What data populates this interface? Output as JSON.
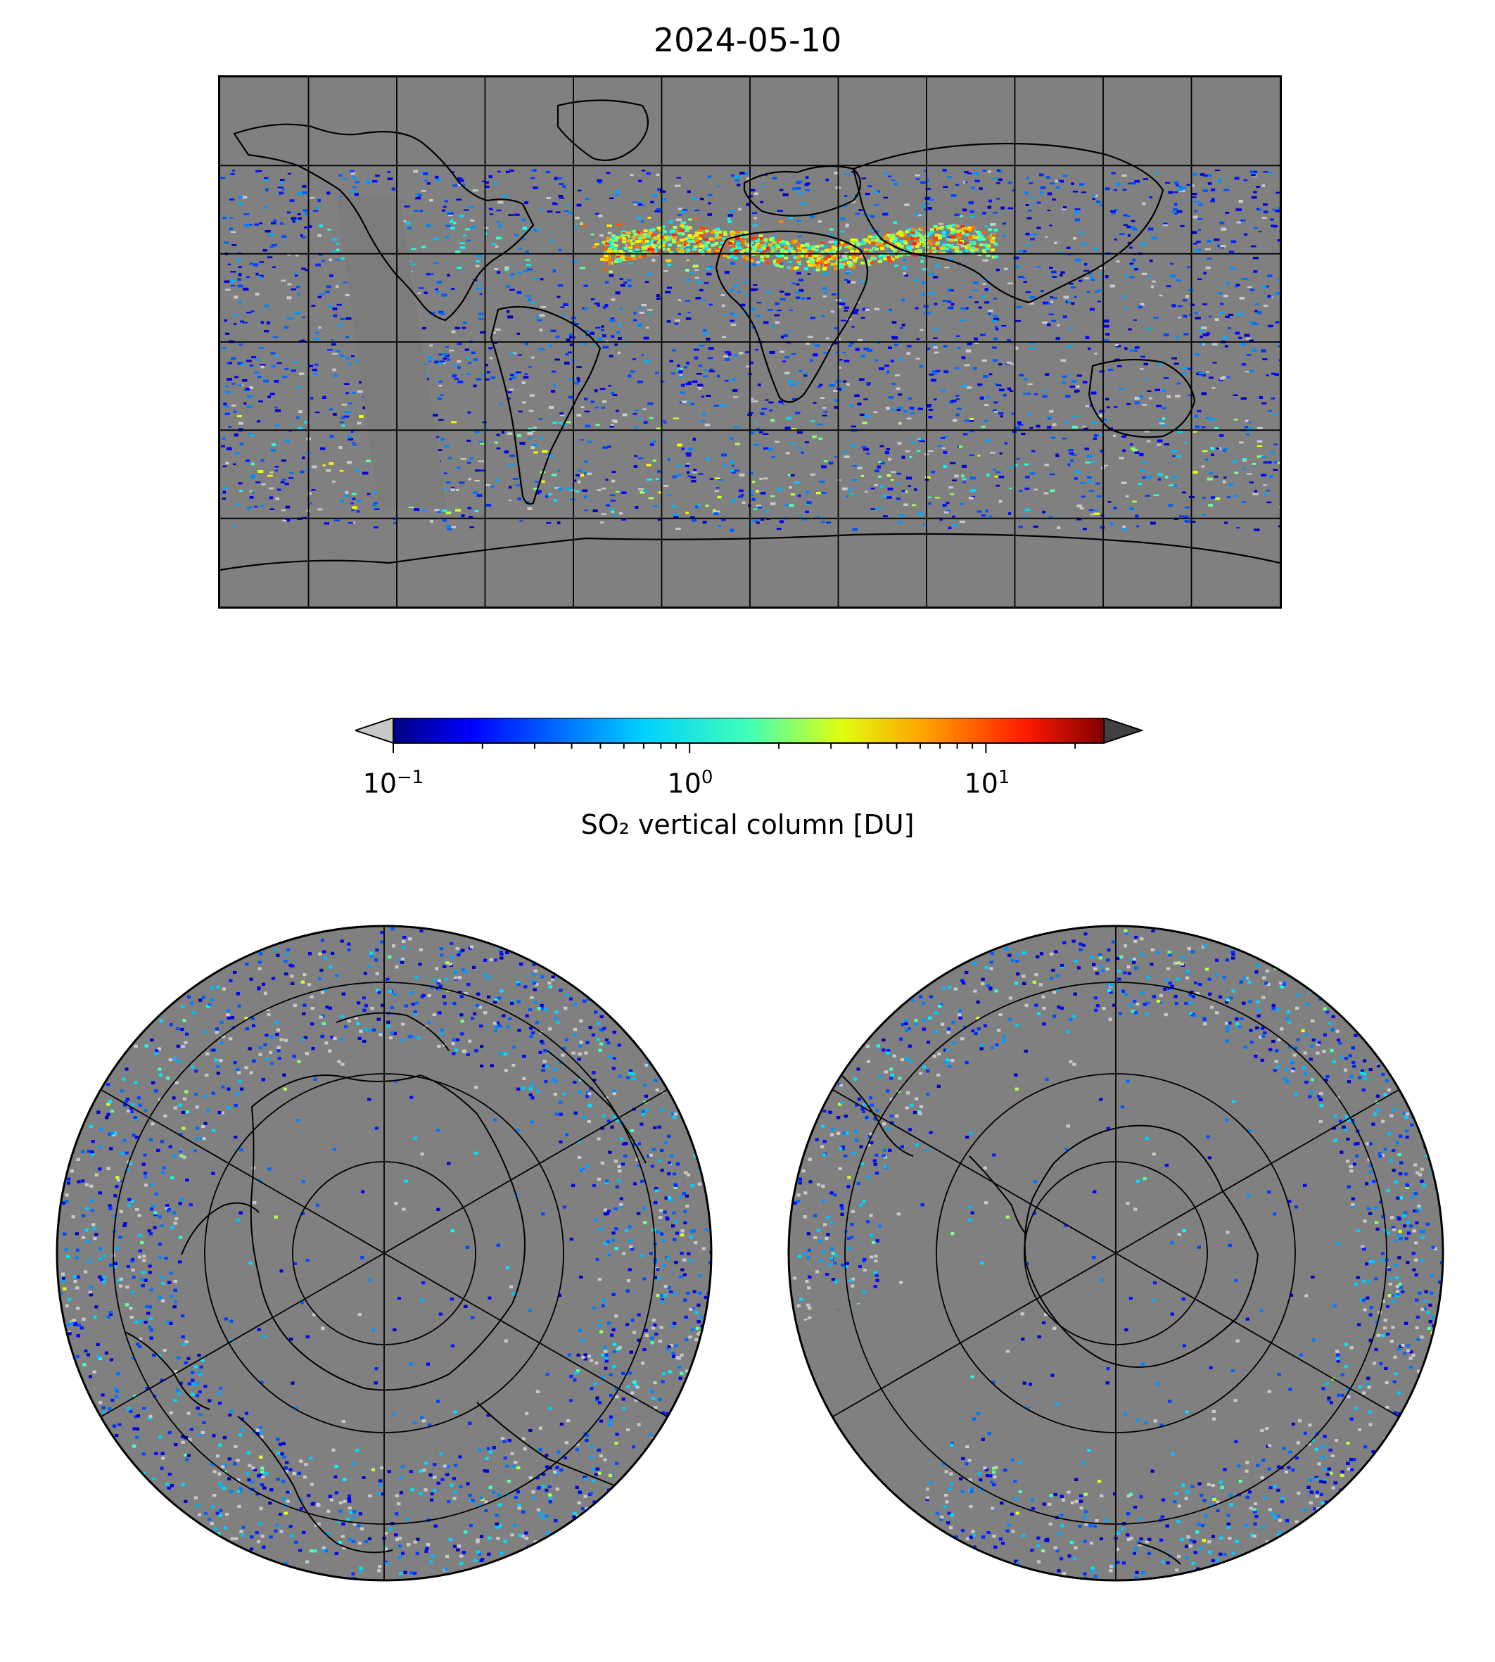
{
  "title": "2024-05-10",
  "colorbar": {
    "label": "SO₂ vertical column [DU]",
    "scale": "log",
    "range": [
      0.1,
      25
    ],
    "colormap": "jet",
    "extend": "both",
    "under_color": "#c8c8c8",
    "over_color": "#404040",
    "ticks": [
      {
        "value": 0.1,
        "base": "10",
        "exp": "−1"
      },
      {
        "value": 1,
        "base": "10",
        "exp": "0"
      },
      {
        "value": 10,
        "base": "10",
        "exp": "1"
      }
    ]
  },
  "maps": [
    {
      "name": "global",
      "projection": "plate-carree",
      "background": "#808080",
      "grid": true
    },
    {
      "name": "north-pole",
      "projection": "north-polar-stereographic",
      "background": "#808080",
      "grid": true
    },
    {
      "name": "south-pole",
      "projection": "south-polar-stereographic",
      "background": "#808080",
      "grid": true
    }
  ]
}
